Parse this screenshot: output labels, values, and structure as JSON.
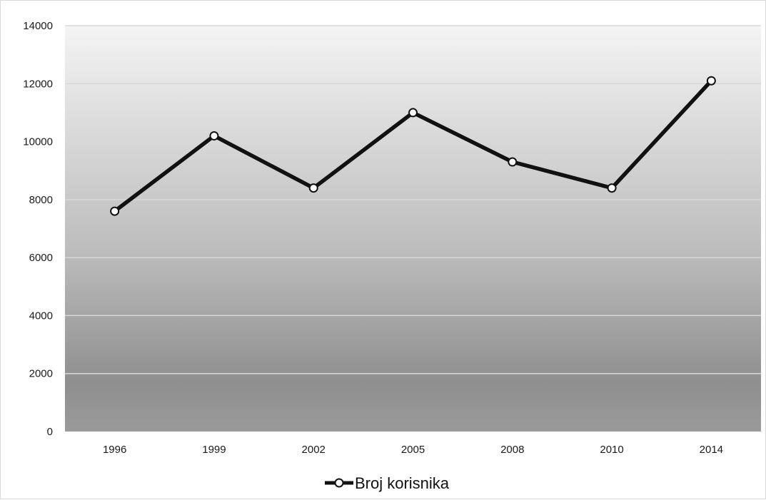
{
  "chart_data": {
    "type": "line",
    "title": "",
    "xlabel": "",
    "ylabel": "",
    "categories": [
      "1996",
      "1999",
      "2002",
      "2005",
      "2008",
      "2010",
      "2014"
    ],
    "series": [
      {
        "name": "Broj korisnika",
        "values": [
          7600,
          10200,
          8400,
          11000,
          9300,
          8400,
          12100
        ]
      }
    ],
    "ylim": [
      0,
      14000
    ],
    "y_ticks": [
      "0",
      "2000",
      "4000",
      "6000",
      "8000",
      "10000",
      "12000",
      "14000"
    ],
    "grid": "horizontal",
    "legend_position": "bottom",
    "colors": {
      "line": "#111111",
      "marker_fill": "#ffffff",
      "gridline": "#d8d8d8",
      "plot_bg_top": "#f4f4f4",
      "plot_bg_bottom": "#9a9a9a"
    }
  }
}
